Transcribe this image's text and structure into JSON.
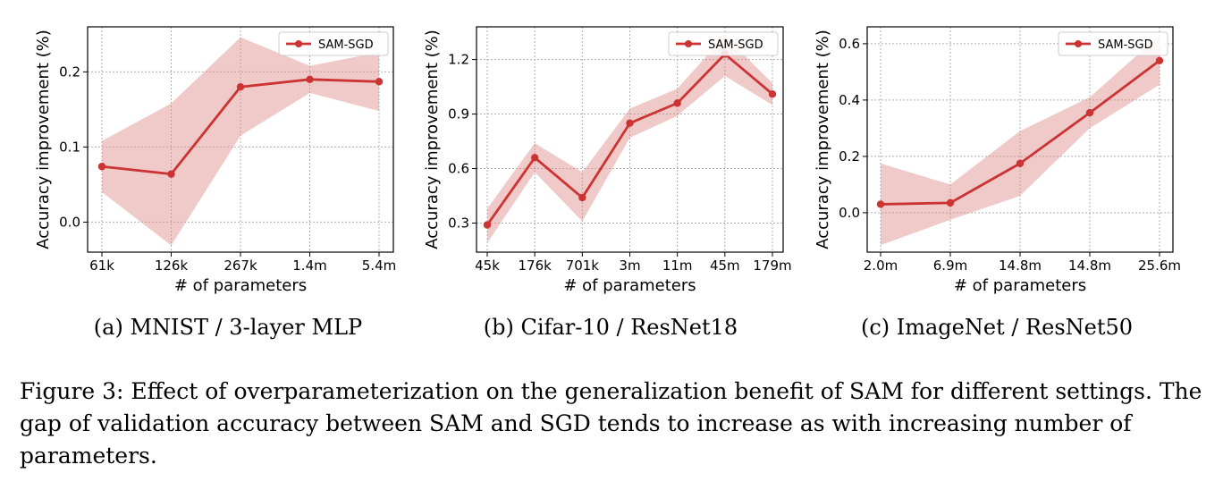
{
  "colors": {
    "line": "#cc3333",
    "band": "#dd8888",
    "band_opacity": 0.45
  },
  "chart_data": [
    {
      "type": "line",
      "caption": "(a) MNIST / 3-layer MLP",
      "xlabel": "# of parameters",
      "ylabel": "Accuracy improvement (%)",
      "categories": [
        "61k",
        "126k",
        "267k",
        "1.4m",
        "5.4m"
      ],
      "ylim": [
        -0.04,
        0.26
      ],
      "yticks": [
        0.0,
        0.1,
        0.2
      ],
      "ytick_labels": [
        "0.0",
        "0.1",
        "0.2"
      ],
      "grid": true,
      "legend": "top-right",
      "series": [
        {
          "name": "SAM-SGD",
          "values": [
            0.074,
            0.064,
            0.18,
            0.19,
            0.187
          ],
          "lower": [
            0.04,
            -0.031,
            0.115,
            0.172,
            0.148
          ],
          "upper": [
            0.108,
            0.158,
            0.246,
            0.208,
            0.226
          ]
        }
      ]
    },
    {
      "type": "line",
      "caption": "(b) Cifar-10 / ResNet18",
      "xlabel": "# of parameters",
      "ylabel": "Accuracy improvement (%)",
      "categories": [
        "45k",
        "176k",
        "701k",
        "3m",
        "11m",
        "45m",
        "179m"
      ],
      "ylim": [
        0.14,
        1.38
      ],
      "yticks": [
        0.3,
        0.6,
        0.9,
        1.2
      ],
      "ytick_labels": [
        "0.3",
        "0.6",
        "0.9",
        "1.2"
      ],
      "grid": true,
      "legend": "top-right",
      "series": [
        {
          "name": "SAM-SGD",
          "values": [
            0.29,
            0.66,
            0.44,
            0.85,
            0.96,
            1.23,
            1.01
          ],
          "lower": [
            0.19,
            0.58,
            0.31,
            0.77,
            0.89,
            1.11,
            0.95
          ],
          "upper": [
            0.38,
            0.74,
            0.58,
            0.93,
            1.04,
            1.33,
            1.07
          ]
        }
      ]
    },
    {
      "type": "line",
      "caption": "(c) ImageNet / ResNet50",
      "xlabel": "# of parameters",
      "ylabel": "Accuracy improvement (%)",
      "categories": [
        "2.0m",
        "6.9m",
        "14.8m",
        "14.8m",
        "25.6m"
      ],
      "ylim": [
        -0.14,
        0.66
      ],
      "yticks": [
        0.0,
        0.2,
        0.4,
        0.6
      ],
      "ytick_labels": [
        "0.0",
        "0.2",
        "0.4",
        "0.6"
      ],
      "grid": true,
      "legend": "top-right",
      "series": [
        {
          "name": "SAM-SGD",
          "values": [
            0.03,
            0.035,
            0.175,
            0.355,
            0.54
          ],
          "lower": [
            -0.115,
            -0.025,
            0.06,
            0.3,
            0.455
          ],
          "upper": [
            0.175,
            0.1,
            0.29,
            0.41,
            0.63
          ]
        }
      ]
    }
  ],
  "figure_caption": "Figure 3: Effect of overparameterization on the generalization benefit of SAM for different settings. The gap of validation accuracy between SAM and SGD tends to increase as with increasing number of parameters."
}
